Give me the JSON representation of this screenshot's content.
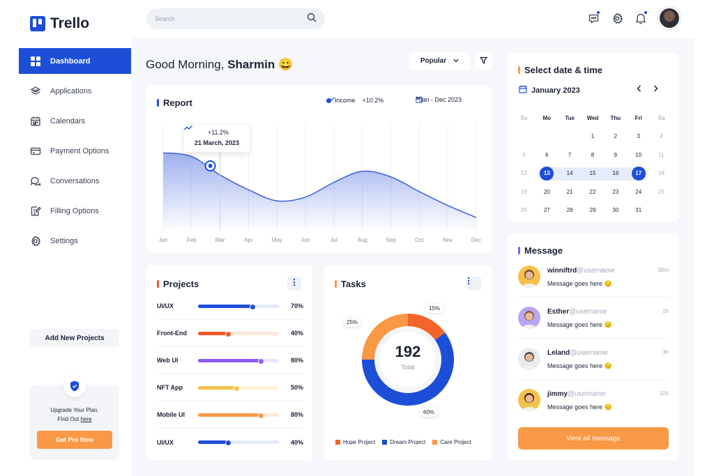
{
  "app": {
    "name": "Trello"
  },
  "sidebar": {
    "items": [
      {
        "label": "Dashboard",
        "icon": "grid-icon"
      },
      {
        "label": "Applications",
        "icon": "layers-icon"
      },
      {
        "label": "Calendars",
        "icon": "calendar-icon"
      },
      {
        "label": "Payment Options",
        "icon": "card-icon"
      },
      {
        "label": "Conversations",
        "icon": "chat-icon"
      },
      {
        "label": "Filling Options",
        "icon": "edit-doc-icon"
      },
      {
        "label": "Settings",
        "icon": "gear-icon"
      }
    ],
    "add_projects": "Add New Projects",
    "upgrade_line1": "Upgrade Your Plan.",
    "upgrade_line2": "Find Out ",
    "upgrade_link": "here",
    "pro_button": "Get Pro Now"
  },
  "header": {
    "search_placeholder": "Search"
  },
  "greeting": {
    "prefix": "Good Morning, ",
    "name": "Sharmin",
    "emoji": "😀"
  },
  "filters": {
    "popular": "Popular"
  },
  "report": {
    "title": "Report",
    "legend": "Income",
    "change": "+10.2%",
    "date_range": "Jan - Dec 2023",
    "tooltip_change": "+11.2%",
    "tooltip_date": "21 March, 2023",
    "accent": "#1d4ed8"
  },
  "chart_data": {
    "type": "area",
    "x": [
      "Jan",
      "Feb",
      "Mar",
      "Apr",
      "May",
      "Jun",
      "Jul",
      "Aug",
      "Sep",
      "Oct",
      "Nov",
      "Dec"
    ],
    "series": [
      {
        "name": "Income",
        "values": [
          0.82,
          0.78,
          0.58,
          0.42,
          0.3,
          0.34,
          0.5,
          0.62,
          0.56,
          0.4,
          0.25,
          0.12
        ]
      }
    ],
    "highlight": {
      "x": "Mar",
      "label": "+11.2%",
      "date": "21 March, 2023"
    }
  },
  "projects": {
    "title": "Projects",
    "items": [
      {
        "name": "UI/UX",
        "pct": "70%",
        "value": 0.7,
        "color": "#1d4ed8",
        "track": "#e4eafa"
      },
      {
        "name": "Front-End",
        "pct": "40%",
        "value": 0.4,
        "color": "#f15a29",
        "track": "#fde6dc"
      },
      {
        "name": "Web UI",
        "pct": "80%",
        "value": 0.8,
        "color": "#8b5cf6",
        "track": "#ebe5fb"
      },
      {
        "name": "NFT App",
        "pct": "50%",
        "value": 0.5,
        "color": "#f6c14b",
        "track": "#fdf1d6"
      },
      {
        "name": "Mobile UI",
        "pct": "80%",
        "value": 0.8,
        "color": "#f99845",
        "track": "#fde9d9"
      },
      {
        "name": "UI/UX",
        "pct": "40%",
        "value": 0.4,
        "color": "#1d4ed8",
        "track": "#e4eafa"
      }
    ]
  },
  "tasks": {
    "title": "Tasks",
    "total": "192",
    "total_label": "Total",
    "segments": [
      {
        "name": "Hope Project",
        "pct": "15%",
        "value": 15,
        "color": "#f4642a"
      },
      {
        "name": "Dream Project",
        "pct": "60%",
        "value": 60,
        "color": "#1d4ed8"
      },
      {
        "name": "Care Project",
        "pct": "25%",
        "value": 25,
        "color": "#f99845"
      }
    ]
  },
  "calendar": {
    "title": "Select date & time",
    "month": "January 2023",
    "weekdays": [
      "Su",
      "Mo",
      "Tue",
      "Wed",
      "Thu",
      "Fri",
      "Sa"
    ],
    "weeks": [
      [
        "",
        "",
        "",
        "1",
        "2",
        "3",
        "4"
      ],
      [
        "5",
        "6",
        "7",
        "8",
        "9",
        "10",
        "11"
      ],
      [
        "12",
        "13",
        "14",
        "15",
        "16",
        "17",
        "18"
      ],
      [
        "19",
        "20",
        "21",
        "22",
        "23",
        "24",
        "25"
      ],
      [
        "26",
        "27",
        "28",
        "29",
        "30",
        "31",
        ""
      ]
    ],
    "selected_start": "13",
    "selected_end": "17"
  },
  "messages": {
    "title": "Message",
    "items": [
      {
        "name": "winniftrd",
        "user": "@username",
        "text": "Message goes here",
        "emoji": "😔",
        "time": "30m"
      },
      {
        "name": "Esther",
        "user": "@username",
        "text": "Message goes here",
        "emoji": "😔",
        "time": "1h"
      },
      {
        "name": "Leland",
        "user": "@username",
        "text": "Message goes here",
        "emoji": "😔",
        "time": "3h"
      },
      {
        "name": "jimmy",
        "user": "@username",
        "text": "Message goes here",
        "emoji": "😔",
        "time": "10h"
      }
    ],
    "view_all": "View all message"
  },
  "colors": {
    "primary": "#1d4ed8",
    "orange": "#f99845",
    "background": "#f6f7fa"
  }
}
